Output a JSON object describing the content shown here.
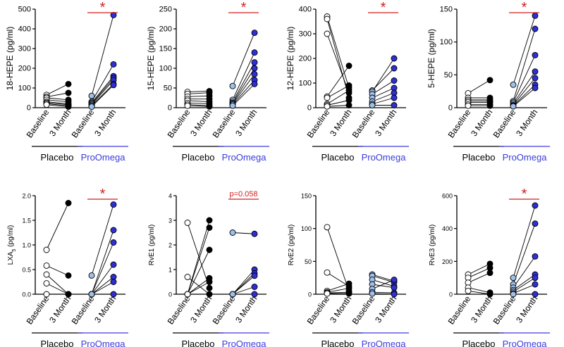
{
  "chart_data": [
    {
      "type": "scatter",
      "ylabel": "18-HEPE (pg/ml)",
      "ylim": [
        0,
        500
      ],
      "yticks": [
        "0",
        "100",
        "200",
        "300",
        "400",
        "500"
      ],
      "xticks": [
        "Baseline",
        "3 Month",
        "Baseline",
        "3 Month"
      ],
      "groups": [
        "Placebo",
        "ProOmega"
      ],
      "annotation": "*",
      "placebo_pairs": [
        [
          65,
          120
        ],
        [
          55,
          75
        ],
        [
          50,
          40
        ],
        [
          40,
          30
        ],
        [
          30,
          20
        ],
        [
          25,
          15
        ],
        [
          20,
          10
        ],
        [
          15,
          5
        ]
      ],
      "proomega_pairs": [
        [
          60,
          470
        ],
        [
          30,
          220
        ],
        [
          25,
          160
        ],
        [
          20,
          150
        ],
        [
          15,
          140
        ],
        [
          10,
          120
        ],
        [
          5,
          115
        ]
      ]
    },
    {
      "type": "scatter",
      "ylabel": "15-HEPE (pg/ml)",
      "ylim": [
        0,
        250
      ],
      "yticks": [
        "0",
        "50",
        "100",
        "150",
        "200",
        "250"
      ],
      "xticks": [
        "Baseline",
        "3 Month",
        "Baseline",
        "3 Month"
      ],
      "groups": [
        "Placebo",
        "ProOmega"
      ],
      "annotation": "*",
      "placebo_pairs": [
        [
          40,
          42
        ],
        [
          35,
          38
        ],
        [
          28,
          30
        ],
        [
          22,
          22
        ],
        [
          18,
          15
        ],
        [
          12,
          10
        ],
        [
          8,
          5
        ],
        [
          5,
          3
        ]
      ],
      "proomega_pairs": [
        [
          55,
          190
        ],
        [
          20,
          140
        ],
        [
          15,
          115
        ],
        [
          12,
          100
        ],
        [
          10,
          85
        ],
        [
          8,
          70
        ],
        [
          5,
          60
        ]
      ]
    },
    {
      "type": "scatter",
      "ylabel": "12-HEPE (pg/ml)",
      "ylim": [
        0,
        400
      ],
      "yticks": [
        "0",
        "100",
        "200",
        "300",
        "400"
      ],
      "xticks": [
        "Baseline",
        "3 Month",
        "Baseline",
        "3 Month"
      ],
      "groups": [
        "Placebo",
        "ProOmega"
      ],
      "annotation": "*",
      "placebo_pairs": [
        [
          370,
          80
        ],
        [
          360,
          40
        ],
        [
          300,
          60
        ],
        [
          45,
          170
        ],
        [
          40,
          90
        ],
        [
          15,
          70
        ],
        [
          10,
          30
        ],
        [
          5,
          10
        ]
      ],
      "proomega_pairs": [
        [
          70,
          160
        ],
        [
          65,
          200
        ],
        [
          55,
          110
        ],
        [
          40,
          80
        ],
        [
          25,
          60
        ],
        [
          15,
          40
        ],
        [
          10,
          10
        ]
      ]
    },
    {
      "type": "scatter",
      "ylabel": "5-HEPE (pg/ml)",
      "ylim": [
        0,
        150
      ],
      "yticks": [
        "0",
        "50",
        "100",
        "150"
      ],
      "xticks": [
        "Baseline",
        "3 Month",
        "Baseline",
        "3 Month"
      ],
      "groups": [
        "Placebo",
        "ProOmega"
      ],
      "annotation": "*",
      "placebo_pairs": [
        [
          22,
          42
        ],
        [
          15,
          15
        ],
        [
          12,
          12
        ],
        [
          10,
          10
        ],
        [
          8,
          8
        ],
        [
          5,
          5
        ],
        [
          3,
          3
        ]
      ],
      "proomega_pairs": [
        [
          35,
          140
        ],
        [
          10,
          120
        ],
        [
          8,
          80
        ],
        [
          6,
          55
        ],
        [
          4,
          45
        ],
        [
          3,
          35
        ],
        [
          2,
          30
        ]
      ]
    },
    {
      "type": "scatter",
      "ylabel": "LXA",
      "ylabel_sub": "5",
      "ylabel_unit": " (pg/ml)",
      "ylim": [
        0,
        2
      ],
      "yticks": [
        "0.0",
        "0.5",
        "1.0",
        "1.5",
        "2.0"
      ],
      "xticks": [
        "Baseline",
        "3 Month",
        "Baseline",
        "3 Month"
      ],
      "groups": [
        "Placebo",
        "ProOmega"
      ],
      "annotation": "*",
      "placebo_pairs": [
        [
          0.9,
          1.85
        ],
        [
          0.58,
          0.38
        ],
        [
          0.4,
          0.0
        ],
        [
          0.22,
          0.0
        ],
        [
          0.0,
          0.0
        ]
      ],
      "proomega_pairs": [
        [
          0.38,
          1.82
        ],
        [
          0.0,
          1.3
        ],
        [
          0.0,
          1.05
        ],
        [
          0.0,
          0.6
        ],
        [
          0.0,
          0.35
        ],
        [
          0.0,
          0.25
        ],
        [
          0.0,
          0.0
        ]
      ]
    },
    {
      "type": "scatter",
      "ylabel": "RvE1 (pg/ml)",
      "ylim": [
        0,
        4
      ],
      "yticks": [
        "0",
        "1",
        "2",
        "3",
        "4"
      ],
      "xticks": [
        "Baseline",
        "3 Month",
        "Baseline",
        "3 Month"
      ],
      "groups": [
        "Placebo",
        "ProOmega"
      ],
      "annotation": "p=0.058",
      "placebo_pairs": [
        [
          2.9,
          0.25
        ],
        [
          0.7,
          0.0
        ],
        [
          0.0,
          3.0
        ],
        [
          0.0,
          2.7
        ],
        [
          0.0,
          1.8
        ],
        [
          0.0,
          0.65
        ],
        [
          0.0,
          0.5
        ]
      ],
      "proomega_pairs": [
        [
          2.5,
          2.45
        ],
        [
          0.0,
          1.0
        ],
        [
          0.0,
          0.85
        ],
        [
          0.0,
          0.75
        ],
        [
          0.0,
          0.3
        ],
        [
          0.0,
          0.0
        ]
      ]
    },
    {
      "type": "scatter",
      "ylabel": "RvE2 (pg/ml)",
      "ylim": [
        0,
        150
      ],
      "yticks": [
        "0",
        "50",
        "100",
        "150"
      ],
      "xticks": [
        "Baseline",
        "3 Month",
        "Baseline",
        "3 Month"
      ],
      "groups": [
        "Placebo",
        "ProOmega"
      ],
      "annotation": "",
      "placebo_pairs": [
        [
          102,
          5
        ],
        [
          33,
          12
        ],
        [
          5,
          16
        ],
        [
          3,
          9
        ],
        [
          2,
          3
        ],
        [
          1,
          1
        ]
      ],
      "proomega_pairs": [
        [
          30,
          20
        ],
        [
          28,
          18
        ],
        [
          22,
          12
        ],
        [
          15,
          10
        ],
        [
          8,
          22
        ],
        [
          3,
          2
        ],
        [
          1,
          0
        ]
      ]
    },
    {
      "type": "scatter",
      "ylabel": "RvE3 (pg/ml)",
      "ylim": [
        0,
        600
      ],
      "yticks": [
        "0",
        "200",
        "400",
        "600"
      ],
      "xticks": [
        "Baseline",
        "3 Month",
        "Baseline",
        "3 Month"
      ],
      "groups": [
        "Placebo",
        "ProOmega"
      ],
      "annotation": "*",
      "placebo_pairs": [
        [
          120,
          185
        ],
        [
          100,
          160
        ],
        [
          70,
          130
        ],
        [
          40,
          10
        ],
        [
          20,
          0
        ]
      ],
      "proomega_pairs": [
        [
          100,
          540
        ],
        [
          60,
          430
        ],
        [
          40,
          230
        ],
        [
          25,
          120
        ],
        [
          15,
          100
        ],
        [
          5,
          60
        ],
        [
          0,
          0
        ]
      ]
    }
  ],
  "colors": {
    "placebo_baseline_fill": "#ffffff",
    "placebo_3month_fill": "#000000",
    "proomega_baseline_fill": "#9fc0ec",
    "proomega_3month_fill": "#2f2fd6",
    "proomega_label": "#3b3bdc",
    "significance": "#d11e1e"
  }
}
